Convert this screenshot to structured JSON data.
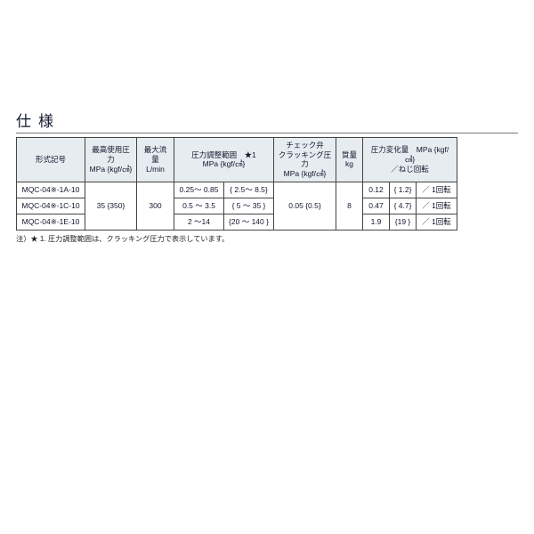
{
  "heading": "仕様",
  "colors": {
    "header_bg": "#e6ecef",
    "border": "#444444",
    "text": "#11172e",
    "page_bg": "#ffffff"
  },
  "font_sizes": {
    "heading": 17,
    "body": 8.5,
    "footnote": 8.2
  },
  "table": {
    "columns": {
      "model": {
        "label": "形式記号"
      },
      "max_p": {
        "line1": "最高使用圧力",
        "line2": "MPa {kgf/㎠}"
      },
      "max_flow": {
        "line1": "最大流量",
        "line2": "L/min"
      },
      "adj": {
        "line1": "圧力調整範囲　★1",
        "line2": "MPa {kgf/㎠}"
      },
      "crack": {
        "line1": "チェック弁",
        "line2": "クラッキング圧力",
        "line3": "MPa {kgf/㎠}"
      },
      "mass": {
        "line1": "質量",
        "line2": "kg"
      },
      "dp": {
        "line1": "圧力変化量　MPa {kgf/㎠}",
        "line2": "／ねじ回転"
      }
    },
    "shared": {
      "max_p": "35 {350}",
      "max_flow": "300",
      "crack": "0.05 {0.5}",
      "mass": "8"
    },
    "rows": [
      {
        "model": "MQC-04※-1A-10",
        "adj_mpa": "0.25～  0.85",
        "adj_kgf": "{ 2.5～    8.5}",
        "dp_mpa": "0.12",
        "dp_kgf": "{ 1.2}",
        "dp_rot": "／ 1回転"
      },
      {
        "model": "MQC-04※-1C-10",
        "adj_mpa": "0.5  ～ 3.5",
        "adj_kgf": "{ 5   ～   35 }",
        "dp_mpa": "0.47",
        "dp_kgf": "{ 4.7}",
        "dp_rot": "／ 1回転"
      },
      {
        "model": "MQC-04※-1E-10",
        "adj_mpa": "2     ～14",
        "adj_kgf": "{20   ～ 140 }",
        "dp_mpa": "1.9",
        "dp_kgf": "{19  }",
        "dp_rot": "／ 1回転"
      }
    ]
  },
  "footnote": "注）★ 1. 圧力調整範囲は、クラッキング圧力で表示しています。"
}
